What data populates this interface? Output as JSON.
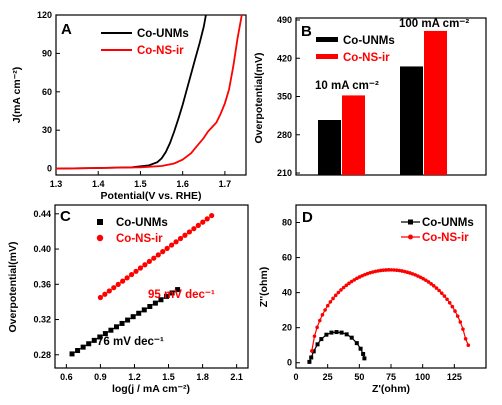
{
  "colors": {
    "co_unms": "#000000",
    "co_ns_ir": "#ff0000"
  },
  "chart_data": [
    {
      "panel": "A",
      "type": "line",
      "xlabel": "Potential(V vs. RHE)",
      "ylabel": "J(mA cm⁻²)",
      "xlim": [
        1.3,
        1.75
      ],
      "ylim": [
        -5,
        120
      ],
      "xticks": [
        "1.3",
        "1.4",
        "1.5",
        "1.6",
        "1.7"
      ],
      "yticks": [
        "0",
        "30",
        "60",
        "90",
        "120"
      ],
      "legend": [
        "Co-UNMs",
        "Co-NS-ir"
      ],
      "legend_position": "top-left",
      "series": [
        {
          "name": "Co-UNMs",
          "color": "#000000",
          "x": [
            1.3,
            1.4,
            1.48,
            1.52,
            1.54,
            1.55,
            1.56,
            1.57,
            1.58,
            1.59,
            1.6,
            1.61,
            1.62,
            1.63,
            1.64,
            1.65,
            1.655
          ],
          "y": [
            0,
            0.5,
            1,
            2.5,
            5,
            8,
            13,
            20,
            29,
            39,
            50,
            62,
            74,
            86,
            98,
            111,
            120
          ]
        },
        {
          "name": "Co-NS-ir",
          "color": "#ff0000",
          "x": [
            1.3,
            1.4,
            1.5,
            1.55,
            1.58,
            1.6,
            1.62,
            1.63,
            1.65,
            1.66,
            1.68,
            1.69,
            1.7,
            1.71,
            1.72,
            1.73,
            1.74
          ],
          "y": [
            0,
            0.5,
            1,
            2,
            4,
            7,
            12,
            16,
            24,
            29,
            36,
            43,
            51,
            62,
            80,
            102,
            120
          ]
        }
      ]
    },
    {
      "panel": "B",
      "type": "bar",
      "ylabel": "Overpotential(mV)",
      "ylim": [
        210,
        490
      ],
      "yticks": [
        "210",
        "280",
        "350",
        "420",
        "490"
      ],
      "categories": [
        "10 mA cm⁻²",
        "100 mA cm⁻²"
      ],
      "legend": [
        "Co-UNMs",
        "Co-NS-ir"
      ],
      "legend_position": "top-left",
      "series": [
        {
          "name": "Co-UNMs",
          "color": "#000000",
          "values": [
            307,
            405
          ]
        },
        {
          "name": "Co-NS-ir",
          "color": "#ff0000",
          "values": [
            352,
            470
          ]
        }
      ]
    },
    {
      "panel": "C",
      "type": "scatter",
      "xlabel": "log(j / mA cm⁻²)",
      "ylabel": "Overpotential(mV)",
      "xlim": [
        0.5,
        2.2
      ],
      "ylim": [
        0.265,
        0.45
      ],
      "xticks": [
        "0.6",
        "0.9",
        "1.2",
        "1.5",
        "1.8",
        "2.1"
      ],
      "yticks": [
        "0.28",
        "0.32",
        "0.36",
        "0.40",
        "0.44"
      ],
      "legend": [
        "Co-UNMs",
        "Co-NS-ir"
      ],
      "legend_position": "top-left",
      "annotations": [
        "95 mV dec⁻¹",
        "76 mV dec⁻¹"
      ],
      "series": [
        {
          "name": "Co-UNMs",
          "color": "#000000",
          "marker": "square",
          "x_range": [
            0.65,
            1.58
          ],
          "y_range": [
            0.281,
            0.354
          ],
          "n_points": 20
        },
        {
          "name": "Co-NS-ir",
          "color": "#ff0000",
          "marker": "circle",
          "x_range": [
            0.9,
            1.88
          ],
          "y_range": [
            0.345,
            0.438
          ],
          "n_points": 26
        }
      ]
    },
    {
      "panel": "D",
      "type": "line",
      "xlabel": "Z'(ohm)",
      "ylabel": "Z''(ohm)",
      "xlim": [
        0,
        150
      ],
      "ylim": [
        -3,
        90
      ],
      "xticks": [
        "0",
        "25",
        "50",
        "75",
        "100",
        "125"
      ],
      "yticks": [
        "0",
        "20",
        "40",
        "60",
        "80"
      ],
      "legend": [
        "Co-UNMs",
        "Co-NS-ir"
      ],
      "legend_position": "top-center",
      "series": [
        {
          "name": "Co-UNMs",
          "color": "#000000",
          "marker": "square",
          "x": [
            10.6,
            12,
            14,
            17,
            20,
            24,
            28,
            32,
            36,
            40,
            44,
            48,
            51,
            53,
            54
          ],
          "y": [
            0.5,
            3,
            6.5,
            10.5,
            13.5,
            16,
            17.2,
            17.5,
            17.2,
            16.2,
            14.3,
            11.2,
            8,
            5,
            2.5
          ]
        },
        {
          "name": "Co-NS-ir",
          "color": "#ff0000",
          "marker": "circle",
          "center": 74,
          "radius": 62,
          "peak_y": 53,
          "x_start": 12.5,
          "x_end": 136,
          "end_y": 10,
          "n_points": 60
        }
      ]
    }
  ]
}
